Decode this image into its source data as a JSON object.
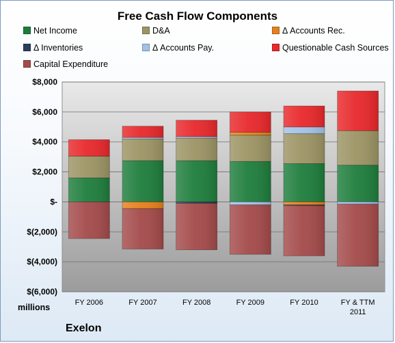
{
  "chart_data": {
    "type": "bar",
    "stacked": true,
    "title": "Free Cash Flow Components",
    "categories": [
      "FY 2006",
      "FY 2007",
      "FY 2008",
      "FY 2009",
      "FY 2010",
      "FY & TTM 2011"
    ],
    "ylim": [
      -6000,
      8000
    ],
    "yticks": [
      8000,
      6000,
      4000,
      2000,
      0,
      -2000,
      -4000,
      -6000
    ],
    "ytick_labels": [
      "$8,000",
      "$6,000",
      "$4,000",
      "$2,000",
      "$-",
      "$(2,000)",
      "$(4,000)",
      "$(6,000)"
    ],
    "grid": true,
    "legend_position": "top",
    "units_label": "millions",
    "footer_label": "Exelon",
    "series": [
      {
        "name": "Net Income",
        "color": "#1e7d3c",
        "values": [
          1600,
          2750,
          2750,
          2700,
          2550,
          2450
        ]
      },
      {
        "name": "D&A",
        "color": "#9c9464",
        "values": [
          1450,
          1450,
          1500,
          1750,
          2000,
          2300
        ]
      },
      {
        "name": "Δ Accounts Rec.",
        "color": "#e4801c",
        "values": [
          0,
          -450,
          0,
          200,
          -200,
          0
        ]
      },
      {
        "name": "Δ Inventories",
        "color": "#2b3f5c",
        "values": [
          0,
          0,
          -100,
          0,
          -50,
          0
        ]
      },
      {
        "name": "Δ Accounts Pay.",
        "color": "#a3c1e6",
        "values": [
          0,
          100,
          100,
          -200,
          450,
          -150
        ]
      },
      {
        "name": "Questionable Cash Sources",
        "color": "#e8282b",
        "values": [
          1100,
          750,
          1100,
          1350,
          1400,
          2650
        ]
      },
      {
        "name": "Capital Expenditure",
        "color": "#a44a4a",
        "values": [
          -2450,
          -2700,
          -3100,
          -3300,
          -3350,
          -4150
        ]
      }
    ]
  }
}
